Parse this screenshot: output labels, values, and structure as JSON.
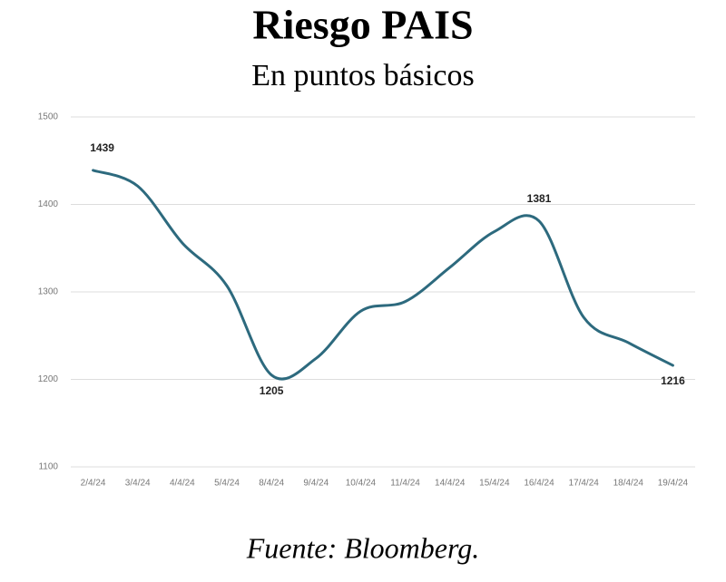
{
  "chart_data": {
    "type": "line",
    "title": "Riesgo PAIS",
    "subtitle": "En puntos básicos",
    "source": "Fuente: Bloomberg.",
    "categories": [
      "2/4/24",
      "3/4/24",
      "4/4/24",
      "5/4/24",
      "8/4/24",
      "9/4/24",
      "10/4/24",
      "11/4/24",
      "14/4/24",
      "15/4/24",
      "16/4/24",
      "17/4/24",
      "18/4/24",
      "19/4/24"
    ],
    "values": [
      1439,
      1421,
      1356,
      1307,
      1205,
      1224,
      1278,
      1289,
      1328,
      1369,
      1381,
      1271,
      1242,
      1216
    ],
    "value_labels": [
      "1439",
      null,
      null,
      null,
      "1205",
      null,
      null,
      null,
      null,
      null,
      "1381",
      null,
      null,
      "1216"
    ],
    "color": "#2d6a7e",
    "ylim": [
      1100,
      1500
    ],
    "yticks": [
      1100,
      1200,
      1300,
      1400,
      1500
    ],
    "grid": true
  }
}
